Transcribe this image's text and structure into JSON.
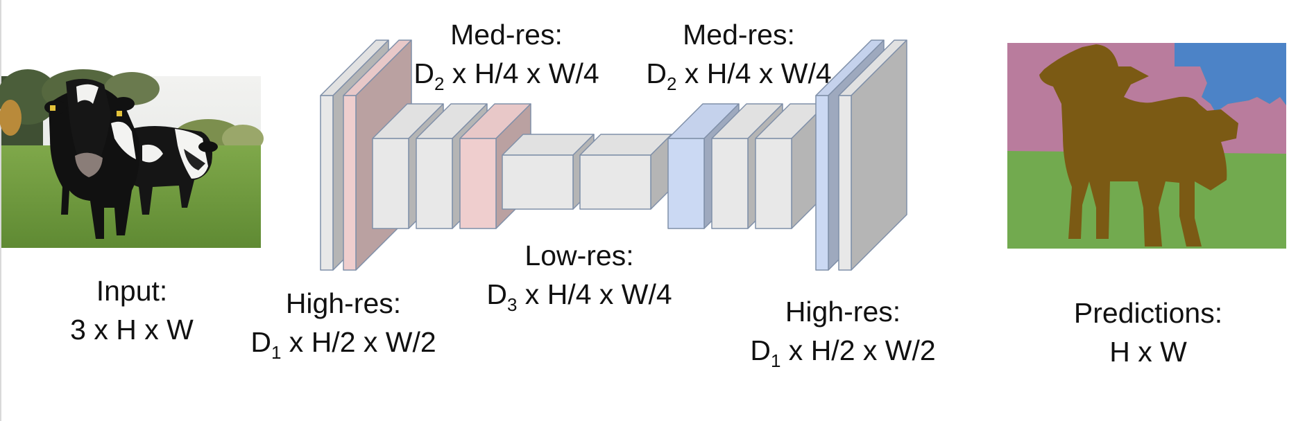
{
  "colors": {
    "block_gray": "#e8e8e8",
    "block_pink": "#efcece",
    "block_blue": "#cbd9f3",
    "block_stroke": "#7f8fa8",
    "seg_pink": "#b97c9d",
    "seg_blue": "#4c83c7",
    "seg_green": "#72aa4f",
    "seg_brown": "#7b5a14"
  },
  "images": {
    "input_photo": "input image: two black-and-white cows on grass",
    "prediction_map": "segmentation map prediction"
  },
  "labels": {
    "input_title": "Input:",
    "input_dims": "3 x H x W",
    "highres_left_title": "High-res:",
    "highres_left_D": "D",
    "highres_left_sub": "1",
    "highres_left_dims": " x H/2 x W/2",
    "medres_left_title": "Med-res:",
    "medres_left_D": "D",
    "medres_left_sub": "2",
    "medres_left_dims": " x H/4 x W/4",
    "lowres_title": "Low-res:",
    "lowres_D": "D",
    "lowres_sub": "3",
    "lowres_dims": " x H/4 x W/4",
    "medres_right_title": "Med-res:",
    "medres_right_D": "D",
    "medres_right_sub": "2",
    "medres_right_dims": " x H/4 x W/4",
    "highres_right_title": "High-res:",
    "highres_right_D": "D",
    "highres_right_sub": "1",
    "highres_right_dims": " x H/2 x W/2",
    "pred_title": "Predictions:",
    "pred_dims": "H x W"
  }
}
